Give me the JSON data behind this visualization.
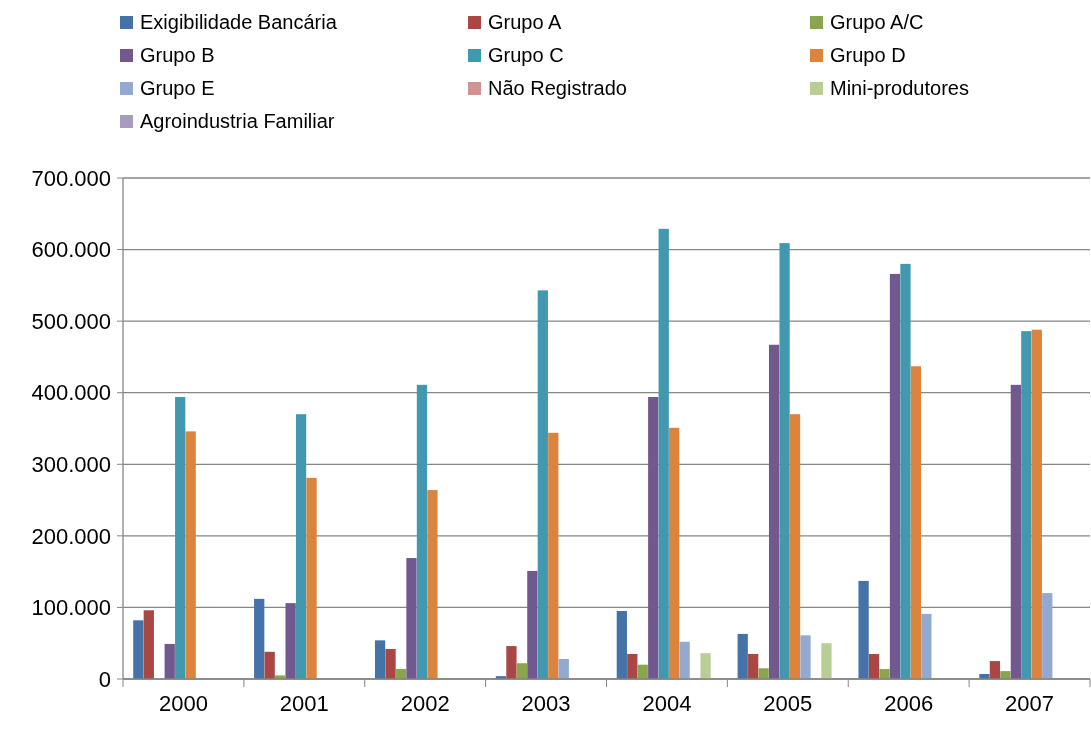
{
  "chart_data": {
    "type": "bar",
    "categories": [
      "2000",
      "2001",
      "2002",
      "2003",
      "2004",
      "2005",
      "2006",
      "2007"
    ],
    "series": [
      {
        "name": "Exigibilidade Bancária",
        "color": "#4572a7",
        "values": [
          82000,
          112000,
          54000,
          4000,
          95000,
          63000,
          137000,
          7000
        ]
      },
      {
        "name": "Grupo A",
        "color": "#aa4643",
        "values": [
          96000,
          38000,
          42000,
          46000,
          35000,
          35000,
          35000,
          25000
        ]
      },
      {
        "name": "Grupo A/C",
        "color": "#89a54e",
        "values": [
          null,
          5000,
          14000,
          22000,
          20000,
          15000,
          14000,
          11000
        ]
      },
      {
        "name": "Grupo B",
        "color": "#71588f",
        "values": [
          49000,
          106000,
          169000,
          151000,
          394000,
          467000,
          566000,
          411000
        ]
      },
      {
        "name": "Grupo C",
        "color": "#4198af",
        "values": [
          394000,
          370000,
          411000,
          543000,
          629000,
          609000,
          580000,
          486000
        ]
      },
      {
        "name": "Grupo D",
        "color": "#db843d",
        "values": [
          346000,
          281000,
          264000,
          344000,
          351000,
          370000,
          437000,
          488000
        ]
      },
      {
        "name": "Grupo E",
        "color": "#93a9cf",
        "values": [
          0,
          0,
          0,
          28000,
          52000,
          61000,
          91000,
          120000
        ]
      },
      {
        "name": "Não Registrado",
        "color": "#d19392",
        "values": [
          0,
          0,
          0,
          0,
          0,
          0,
          0,
          null
        ]
      },
      {
        "name": "Mini-produtores",
        "color": "#b9cd96",
        "values": [
          0,
          0,
          0,
          0,
          36000,
          50000,
          0,
          0
        ]
      },
      {
        "name": "Agroindustria Familiar",
        "color": "#a99bbd",
        "values": [
          0,
          0,
          0,
          0,
          0,
          0,
          0,
          0
        ]
      }
    ],
    "ylim": [
      0,
      700000
    ],
    "yticks": [
      {
        "value": 0,
        "label": "0"
      },
      {
        "value": 100000,
        "label": "100.000"
      },
      {
        "value": 200000,
        "label": "200.000"
      },
      {
        "value": 300000,
        "label": "300.000"
      },
      {
        "value": 400000,
        "label": "400.000"
      },
      {
        "value": 500000,
        "label": "500.000"
      },
      {
        "value": 600000,
        "label": "600.000"
      },
      {
        "value": 700000,
        "label": "700.000"
      }
    ],
    "grid": "y",
    "legend": "top"
  }
}
